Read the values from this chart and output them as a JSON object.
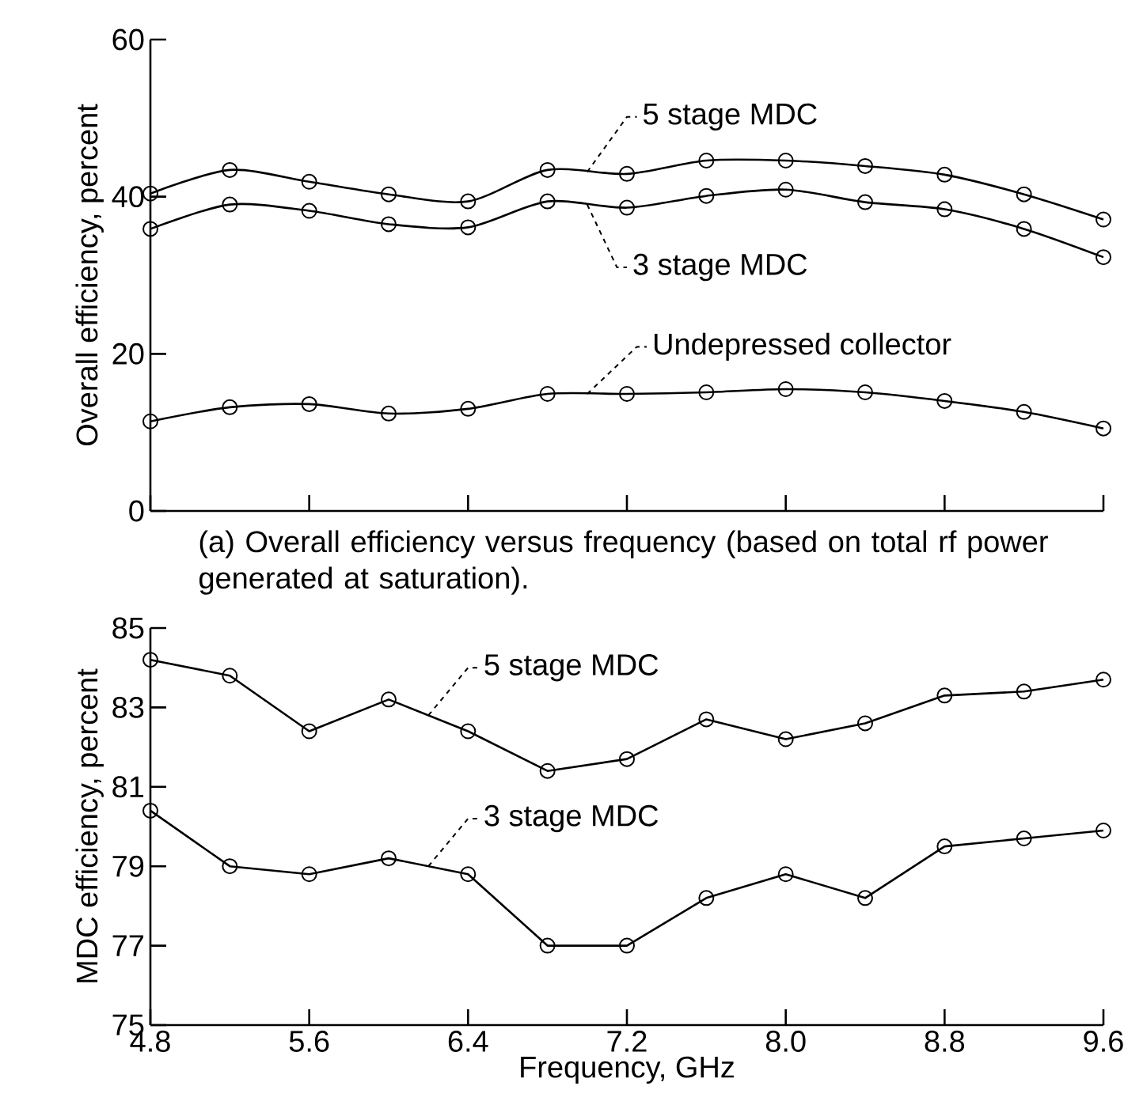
{
  "chart_data": [
    {
      "type": "line",
      "ylabel": "Overall efficiency,  percent",
      "marker": "circle",
      "tick_labels": "y",
      "x": [
        4.8,
        5.2,
        5.6,
        6.0,
        6.4,
        6.8,
        7.2,
        7.6,
        8.0,
        8.4,
        8.8,
        9.2,
        9.6
      ],
      "xlim": [
        4.8,
        9.6
      ],
      "xticks": [
        4.8,
        5.6,
        6.4,
        7.2,
        8.0,
        8.8,
        9.6
      ],
      "ylim": [
        0,
        60
      ],
      "yticks": [
        0,
        20,
        40,
        60
      ],
      "annotations": [
        "(a) Overall efficiency versus frequency (based on total rf power generated at saturation)."
      ],
      "series": [
        {
          "name": "5 stage MDC",
          "color": "#000000",
          "values": [
            40.4,
            43.4,
            41.9,
            40.3,
            39.4,
            43.4,
            42.9,
            44.6,
            44.6,
            43.9,
            42.8,
            40.3,
            37.1
          ]
        },
        {
          "name": "3 stage MDC",
          "color": "#000000",
          "values": [
            35.9,
            39.0,
            38.2,
            36.5,
            36.1,
            39.4,
            38.6,
            40.1,
            40.9,
            39.3,
            38.4,
            35.9,
            32.3
          ]
        },
        {
          "name": "Undepressed collector",
          "color": "#000000",
          "values": [
            11.4,
            13.2,
            13.6,
            12.4,
            13.0,
            14.9,
            14.9,
            15.1,
            15.5,
            15.1,
            14.0,
            12.6,
            10.5
          ]
        }
      ]
    },
    {
      "type": "line",
      "xlabel": "Frequency,  GHz",
      "ylabel": "MDC efficiency,  percent",
      "marker": "circle",
      "x": [
        4.8,
        5.2,
        5.6,
        6.0,
        6.4,
        6.8,
        7.2,
        7.6,
        8.0,
        8.4,
        8.8,
        9.2,
        9.6
      ],
      "xlim": [
        4.8,
        9.6
      ],
      "xticks": [
        4.8,
        5.6,
        6.4,
        7.2,
        {
          "value": 8.0,
          "label": "8.0"
        },
        8.8,
        9.6
      ],
      "ylim": [
        75,
        85
      ],
      "yticks": [
        75,
        77,
        79,
        81,
        83,
        85
      ],
      "series": [
        {
          "name": "5 stage MDC",
          "color": "#000000",
          "values": [
            84.2,
            83.8,
            82.4,
            83.2,
            82.4,
            81.4,
            81.7,
            82.7,
            82.2,
            82.6,
            83.3,
            83.4,
            83.7
          ]
        },
        {
          "name": "3 stage MDC",
          "color": "#000000",
          "values": [
            80.4,
            79.0,
            78.8,
            79.2,
            78.8,
            77.0,
            77.0,
            78.2,
            78.8,
            78.2,
            79.5,
            79.7,
            79.9
          ]
        }
      ]
    }
  ]
}
